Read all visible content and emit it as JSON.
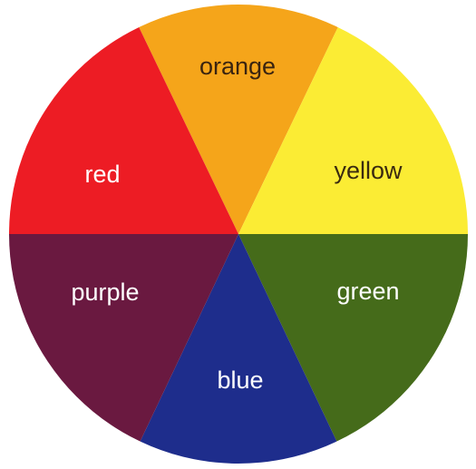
{
  "segments": [
    {
      "key": "orange",
      "label": "orange",
      "color": "#f5a51a",
      "text_color": "#3a2410"
    },
    {
      "key": "yellow",
      "label": "yellow",
      "color": "#fbec34",
      "text_color": "#3a2a10"
    },
    {
      "key": "green",
      "label": "green",
      "color": "#456b1a",
      "text_color": "#ffffff"
    },
    {
      "key": "blue",
      "label": "blue",
      "color": "#1e2d8c",
      "text_color": "#ffffff"
    },
    {
      "key": "purple",
      "label": "purple",
      "color": "#6a1940",
      "text_color": "#ffffff"
    },
    {
      "key": "red",
      "label": "red",
      "color": "#ed1c24",
      "text_color": "#ffffff"
    }
  ]
}
